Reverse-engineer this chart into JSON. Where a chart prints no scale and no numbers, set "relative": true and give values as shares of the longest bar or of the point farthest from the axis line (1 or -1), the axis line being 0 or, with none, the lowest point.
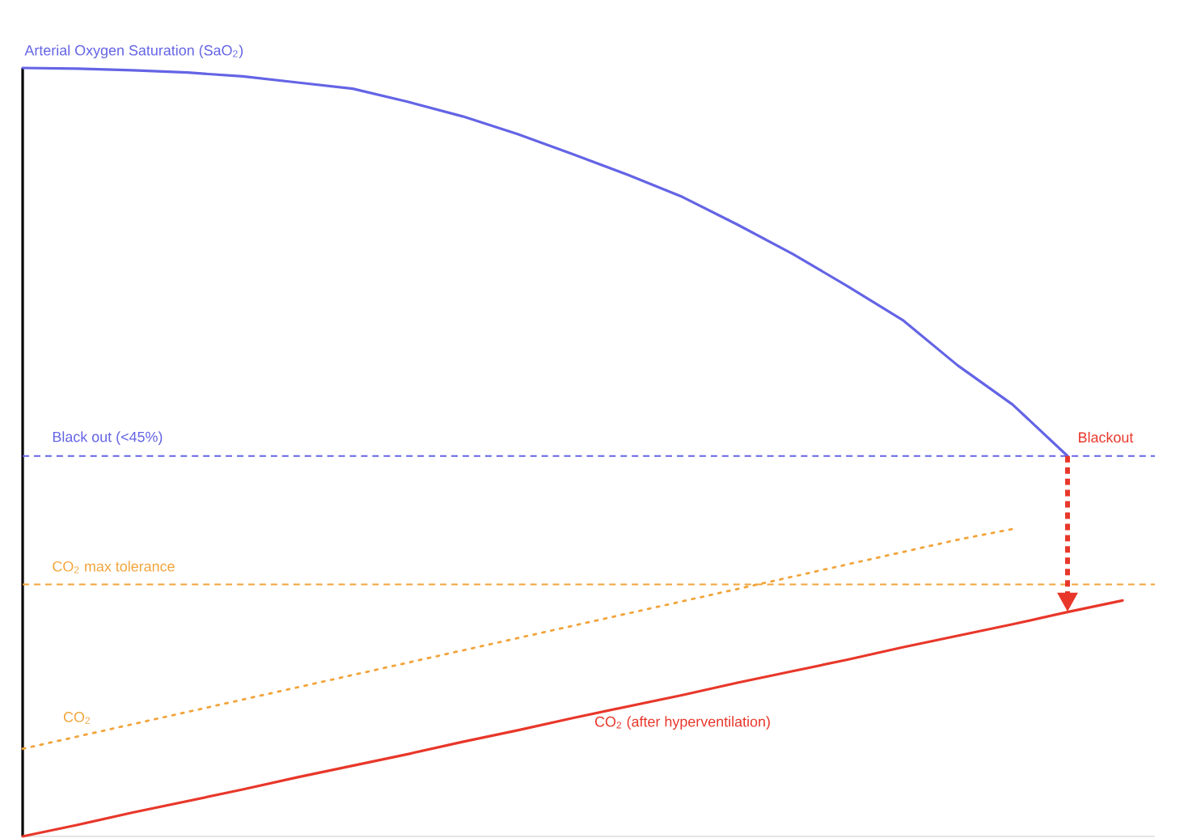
{
  "chart_data": {
    "type": "line",
    "relative": true,
    "marker": "none",
    "categories": [
      null,
      null,
      null,
      null,
      null,
      null,
      null,
      null,
      null,
      null,
      null,
      null,
      null,
      null,
      null,
      null,
      null,
      null,
      null,
      null,
      null
    ],
    "series": [
      {
        "name": "Arterial Oxygen Saturation (SaO$_{2}$)",
        "color": "#6464e6",
        "line_style": "solid",
        "values": [
          1.0,
          0.999,
          0.997,
          0.994,
          0.989,
          0.981,
          0.973,
          0.956,
          0.937,
          0.914,
          0.888,
          0.861,
          0.832,
          0.796,
          0.758,
          0.716,
          0.672,
          0.613,
          0.562,
          0.495,
          null
        ]
      },
      {
        "name": "CO$_{2}$",
        "color": "#f2a43a",
        "line_style": "dotted",
        "values": [
          0.114,
          0.13,
          0.146,
          0.162,
          0.178,
          0.194,
          0.21,
          0.226,
          0.242,
          0.258,
          0.274,
          0.29,
          0.306,
          0.322,
          0.338,
          0.354,
          0.37,
          0.386,
          0.4,
          null,
          null
        ]
      },
      {
        "name": "CO$_{2}$ (after hyperventilation)",
        "color": "#e8372a",
        "line_style": "solid",
        "values": [
          0.0,
          0.015,
          0.031,
          0.046,
          0.061,
          0.077,
          0.092,
          0.107,
          0.123,
          0.138,
          0.154,
          0.169,
          0.184,
          0.2,
          0.215,
          0.23,
          0.246,
          0.261,
          0.276,
          0.292,
          0.307
        ]
      }
    ],
    "ref_lines": [
      {
        "axis": "y",
        "value": 0.495,
        "label": "Black out (<45%)",
        "color": "#6464e6",
        "line_style": "dashed"
      },
      {
        "axis": "y",
        "value": 0.328,
        "label": "CO$_{2}$ max tolerance",
        "color": "#f2a43a",
        "line_style": "dashed"
      }
    ],
    "annotations": [
      "Blackout"
    ]
  }
}
